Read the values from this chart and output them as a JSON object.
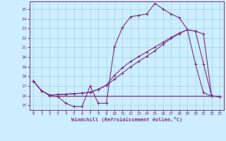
{
  "xlabel": "Windchill (Refroidissement éolien,°C)",
  "bg_color": "#cceeff",
  "line_color": "#7b2d8b",
  "xlim": [
    -0.5,
    23.5
  ],
  "ylim": [
    14.5,
    25.8
  ],
  "xticks": [
    0,
    1,
    2,
    3,
    4,
    5,
    6,
    7,
    8,
    9,
    10,
    11,
    12,
    13,
    14,
    15,
    16,
    17,
    18,
    19,
    20,
    21,
    22,
    23
  ],
  "yticks": [
    15,
    16,
    17,
    18,
    19,
    20,
    21,
    22,
    23,
    24,
    25
  ],
  "line1_x": [
    0,
    1,
    2,
    3,
    4,
    5,
    6,
    7,
    8,
    9,
    10,
    11,
    12,
    13,
    14,
    15,
    16,
    17,
    18,
    19,
    20,
    21,
    22,
    23
  ],
  "line1_y": [
    17.5,
    16.5,
    16.0,
    15.9,
    15.2,
    14.85,
    14.85,
    17.0,
    15.2,
    15.2,
    21.1,
    23.1,
    24.2,
    24.35,
    24.5,
    25.6,
    25.0,
    24.5,
    24.1,
    22.9,
    19.3,
    16.3,
    15.95,
    15.9
  ],
  "line2_x": [
    0,
    1,
    2,
    3,
    4,
    5,
    6,
    7,
    8,
    9,
    10,
    11,
    12,
    13,
    14,
    15,
    16,
    17,
    18,
    19,
    20,
    21,
    22,
    23
  ],
  "line2_y": [
    17.5,
    16.5,
    16.05,
    16.1,
    16.15,
    16.2,
    16.25,
    16.35,
    16.65,
    17.05,
    17.7,
    18.35,
    19.0,
    19.55,
    20.1,
    20.65,
    21.35,
    21.95,
    22.45,
    22.85,
    22.7,
    22.4,
    15.95,
    15.9
  ],
  "line3_x": [
    0,
    1,
    2,
    3,
    4,
    5,
    6,
    7,
    8,
    9,
    10,
    11,
    12,
    13,
    14,
    15,
    16,
    17,
    18,
    19,
    20,
    21,
    22,
    23
  ],
  "line3_y": [
    17.5,
    16.5,
    16.05,
    16.1,
    16.15,
    16.2,
    16.25,
    16.35,
    16.65,
    17.1,
    18.1,
    18.9,
    19.55,
    20.05,
    20.55,
    21.05,
    21.55,
    22.05,
    22.5,
    22.85,
    22.7,
    19.3,
    15.95,
    15.9
  ],
  "hline_y": 16.0,
  "hline_x_start": 2.0,
  "hline_x_end": 23.0
}
